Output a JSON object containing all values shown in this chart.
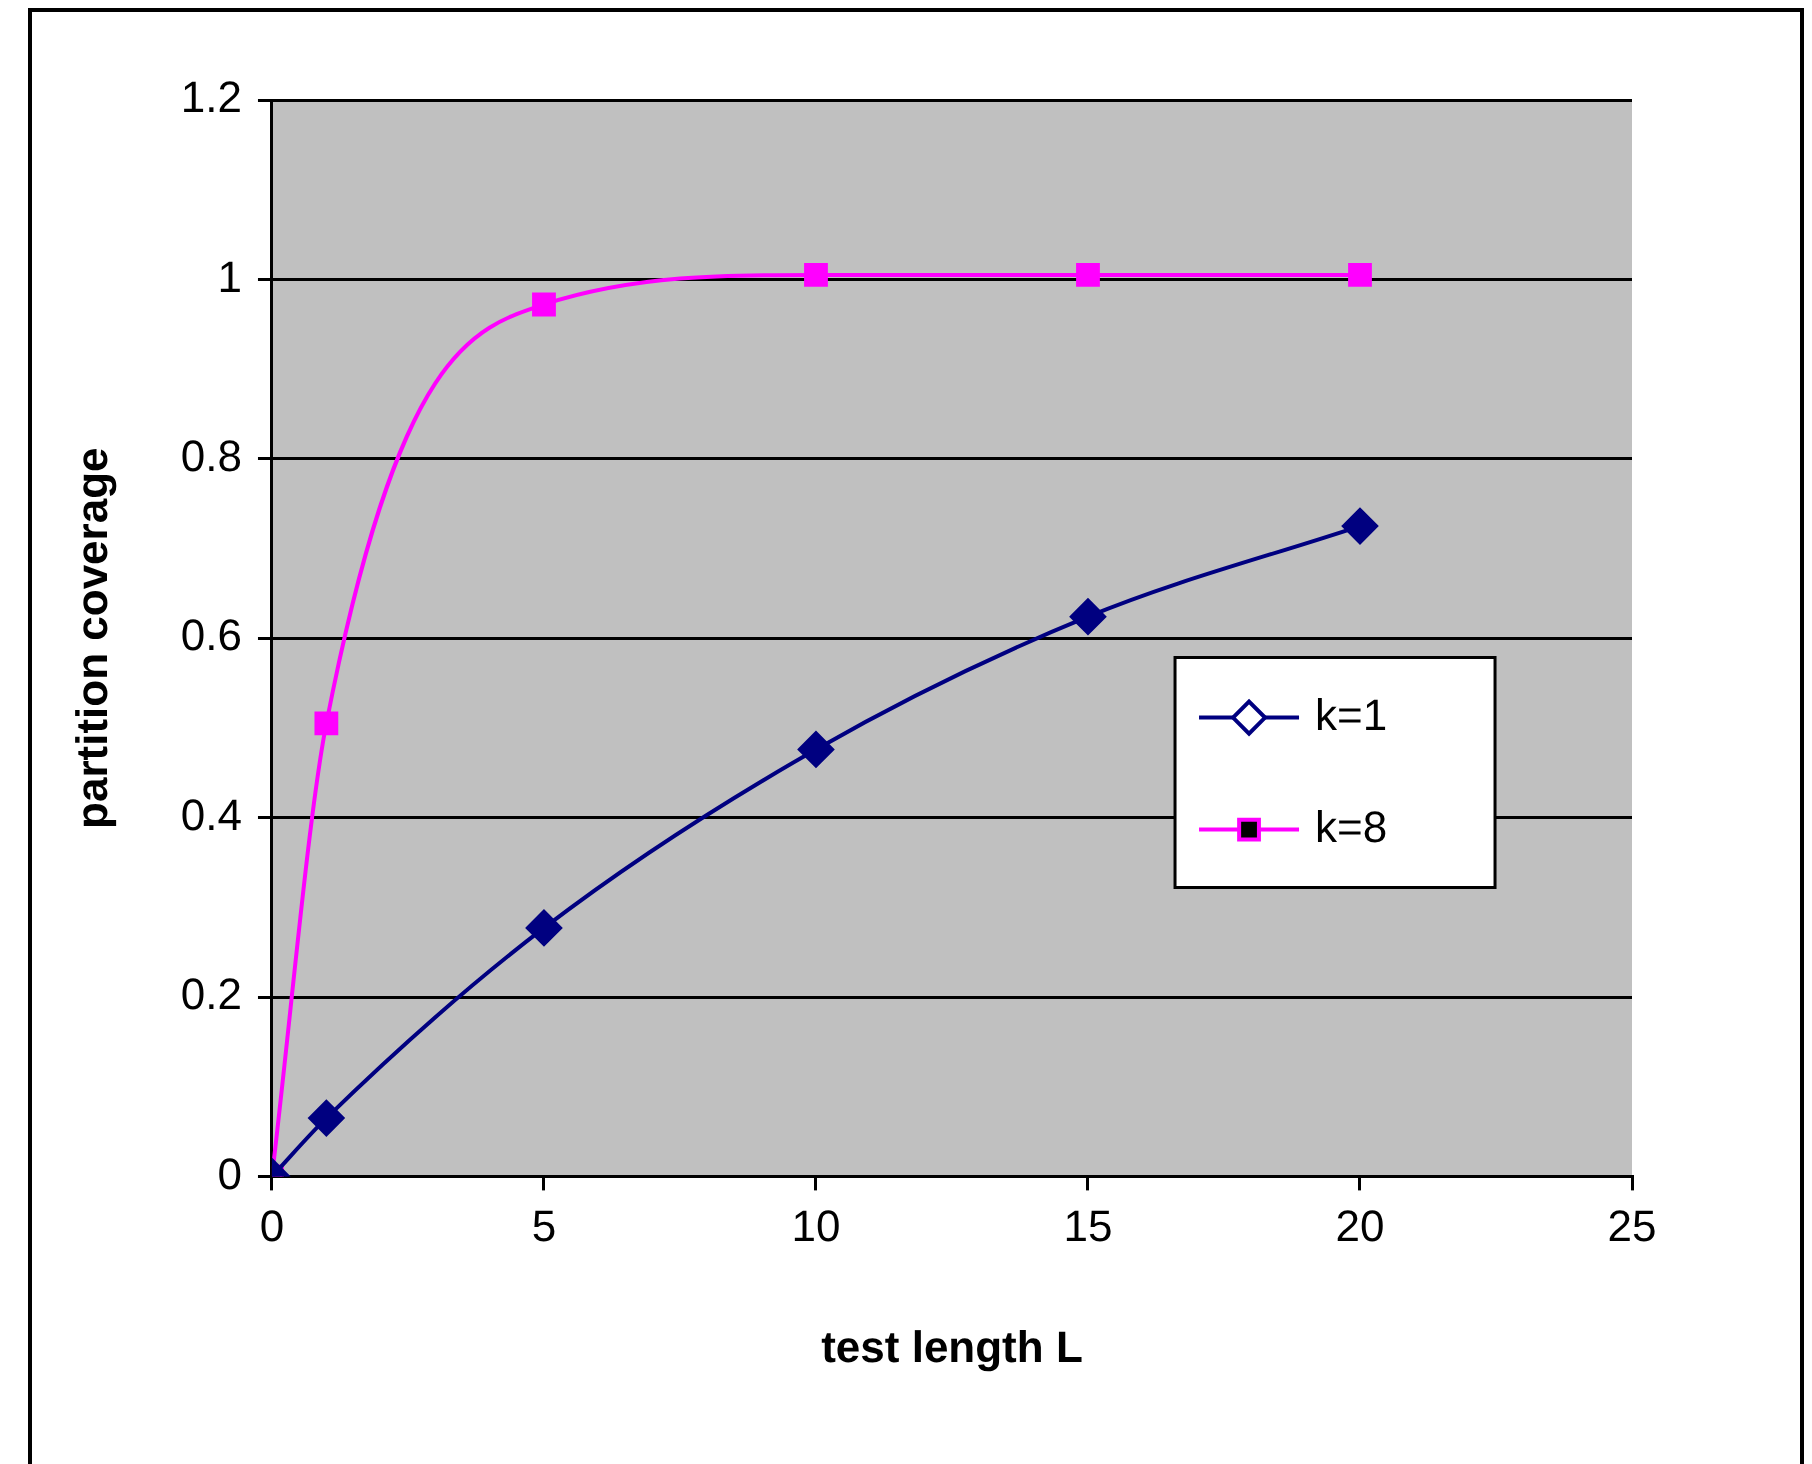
{
  "chart_data": {
    "type": "line",
    "xlabel": "test length L",
    "ylabel": "partition coverage",
    "x": [
      0,
      1,
      5,
      10,
      15,
      20
    ],
    "series": [
      {
        "name": "k=1",
        "color": "#000080",
        "marker": "diamond",
        "values": [
          0,
          0.065,
          0.277,
          0.476,
          0.624,
          0.725
        ]
      },
      {
        "name": "k=8",
        "color": "#ff00ff",
        "marker": "square",
        "values": [
          0,
          0.505,
          0.972,
          1.005,
          1.005,
          1.005
        ]
      }
    ],
    "xlim": [
      0,
      25
    ],
    "xticks": [
      0,
      5,
      10,
      15,
      20,
      25
    ],
    "ylim": [
      0,
      1.2
    ],
    "yticks": [
      0,
      0.2,
      0.4,
      0.6,
      0.8,
      1,
      1.2
    ],
    "grid": "y",
    "legend": "right"
  }
}
